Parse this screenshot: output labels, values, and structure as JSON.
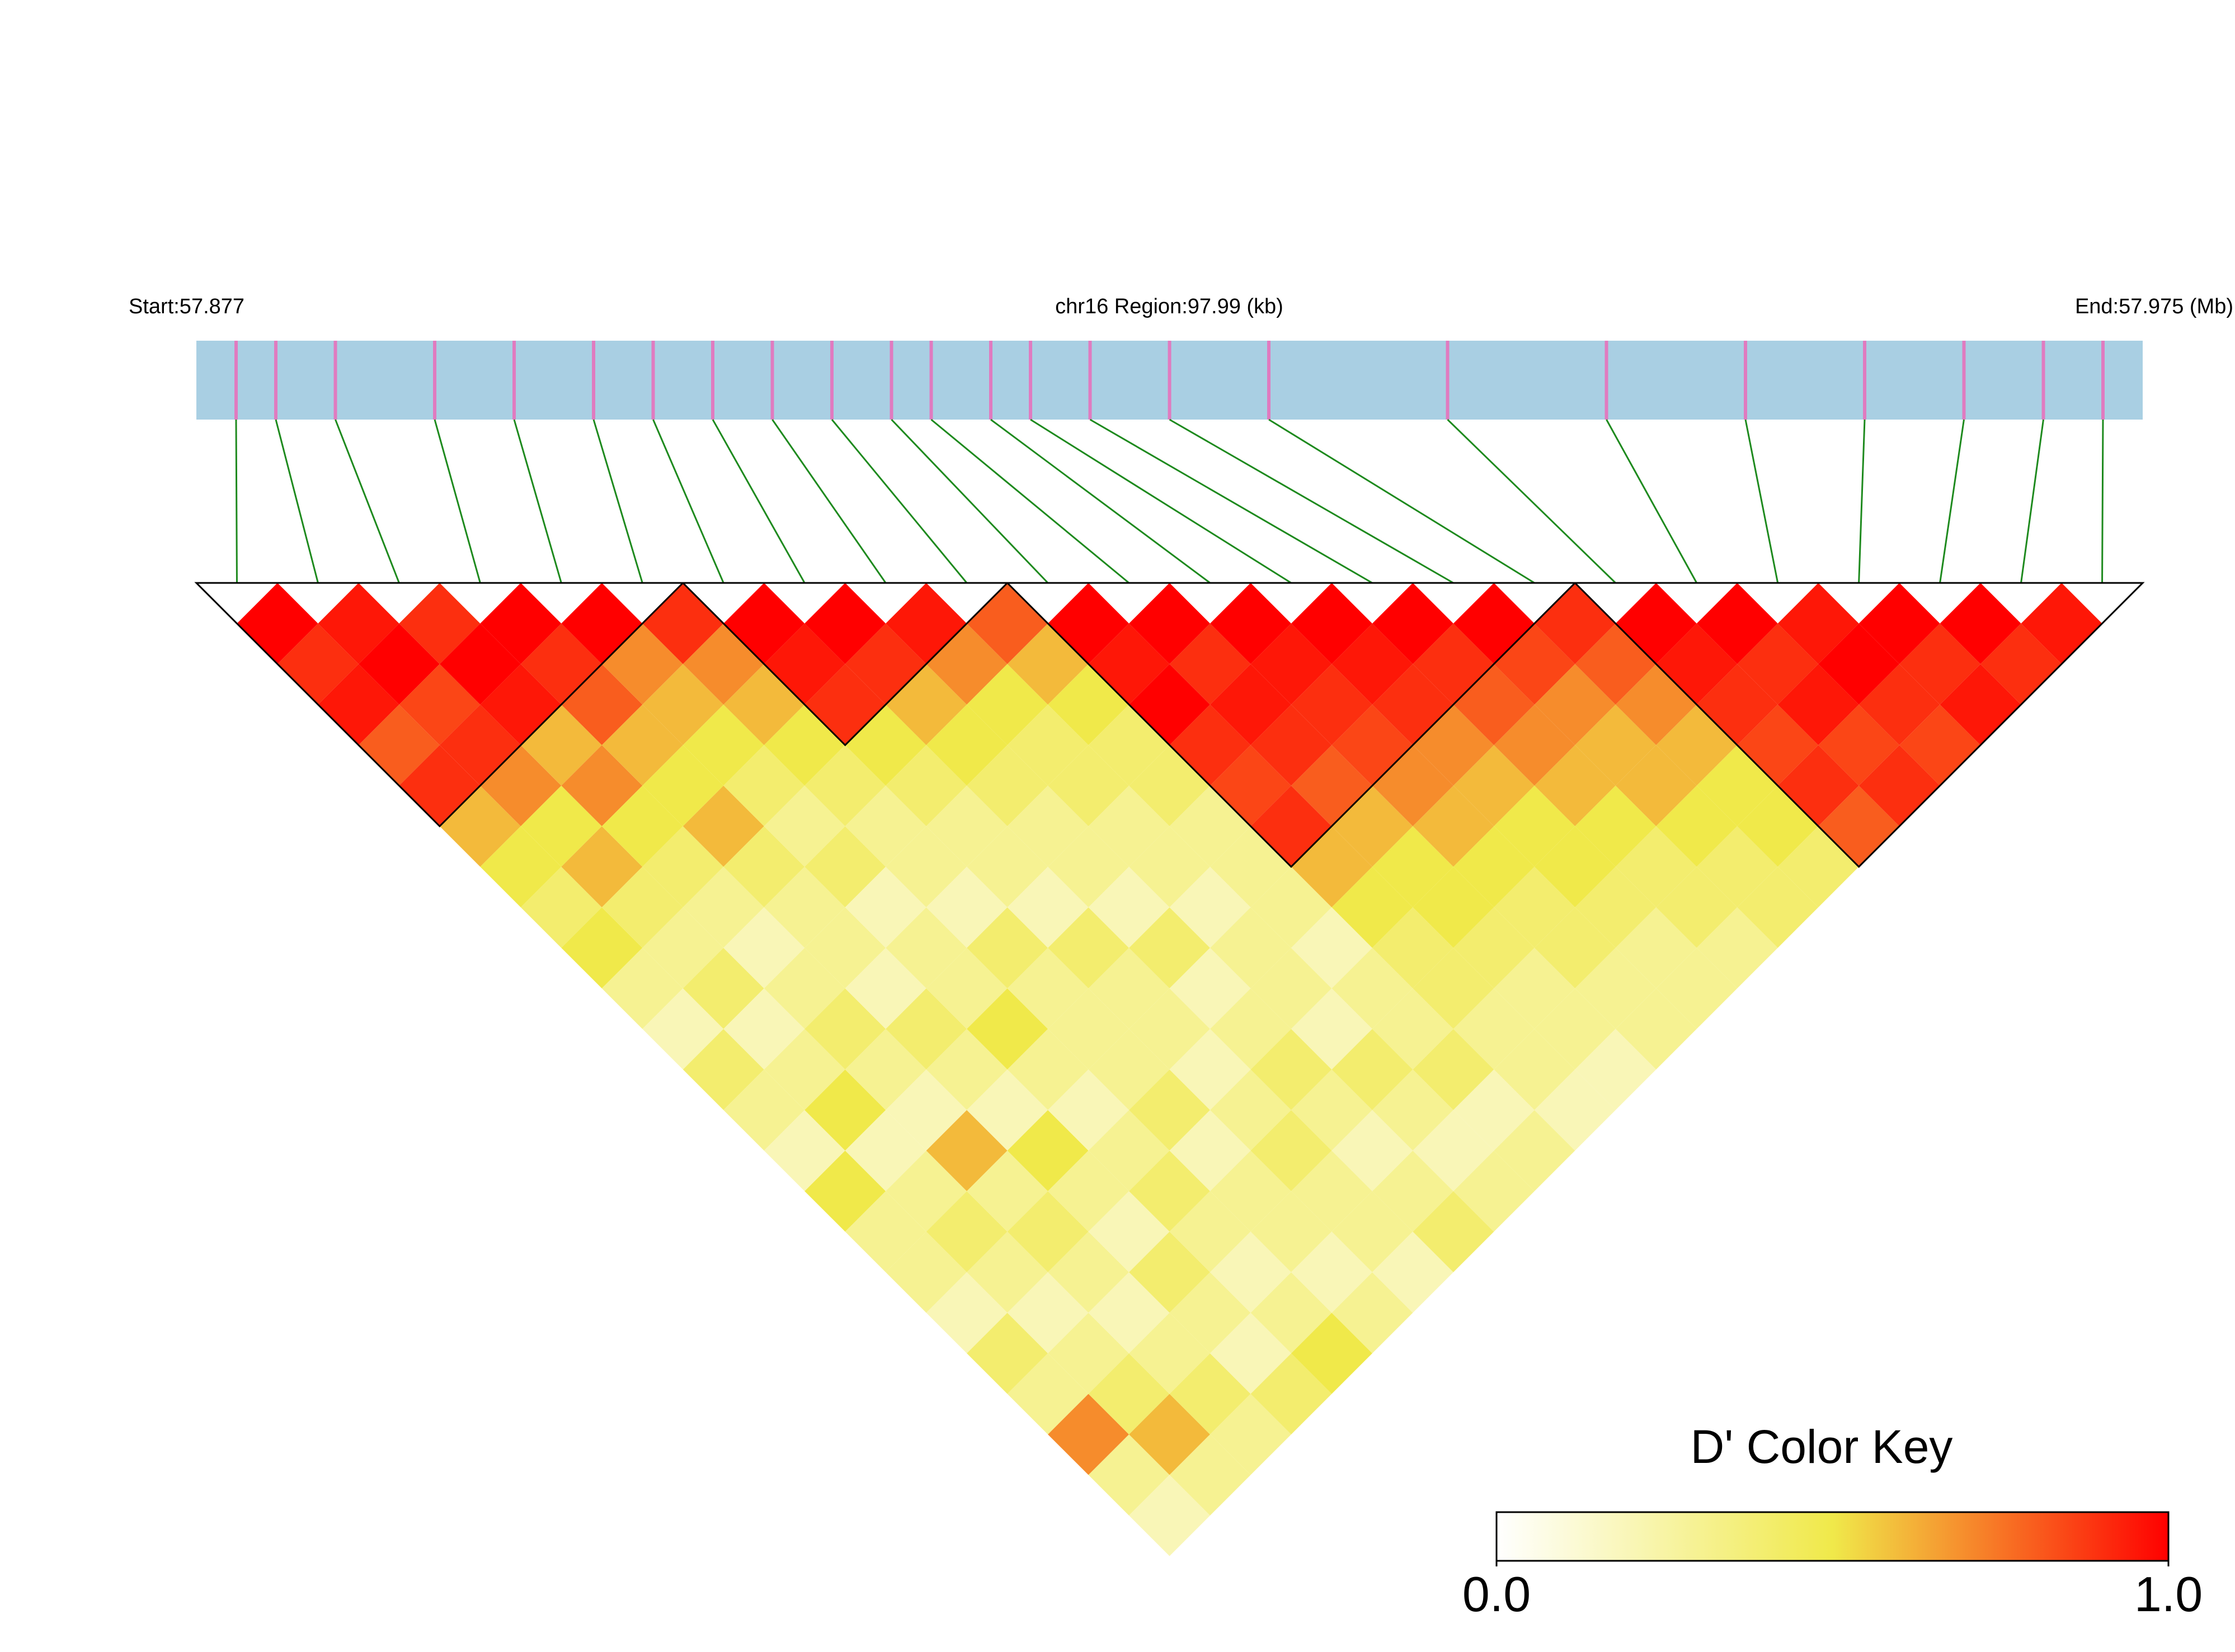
{
  "chart_data": {
    "type": "ld-heatmap",
    "start_label": "Start:57.877",
    "region_label": "chr16 Region:97.99 (kb)",
    "end_label": "End:57.975 (Mb)",
    "legend_title": "D' Color Key",
    "xlim": [
      57.877,
      57.975
    ],
    "x": [
      57.879,
      57.881,
      57.884,
      57.889,
      57.893,
      57.897,
      57.9,
      57.903,
      57.906,
      57.909,
      57.912,
      57.914,
      57.917,
      57.919,
      57.922,
      57.926,
      57.931,
      57.94,
      57.948,
      57.955,
      57.961,
      57.966,
      57.97,
      57.973
    ],
    "values": [
      [
        1,
        0.9,
        0.95,
        0.8,
        0.9,
        0.6,
        0.5,
        0.4,
        0.5,
        0.3,
        0.2,
        0.4,
        0.3,
        0.2,
        0.5,
        0.3,
        0.3,
        0.2,
        0.4,
        0.3,
        0.7,
        0.3,
        0.2
      ],
      [
        0.95,
        1,
        0.85,
        0.9,
        0.7,
        0.5,
        0.6,
        0.4,
        0.3,
        0.4,
        0.2,
        0.3,
        0.5,
        0.2,
        0.3,
        0.4,
        0.3,
        0.2,
        0.3,
        0.4,
        0.6,
        0.3
      ],
      [
        0.9,
        1,
        0.95,
        0.6,
        0.7,
        0.5,
        0.4,
        0.3,
        0.2,
        0.3,
        0.4,
        0.3,
        0.2,
        0.6,
        0.3,
        0.4,
        0.3,
        0.2,
        0.3,
        0.4,
        0.3
      ],
      [
        1,
        0.9,
        0.8,
        0.6,
        0.5,
        0.6,
        0.4,
        0.3,
        0.3,
        0.2,
        0.4,
        0.3,
        0.2,
        0.5,
        0.3,
        0.2,
        0.4,
        0.3,
        0.2,
        0.4
      ],
      [
        1,
        0.7,
        0.6,
        0.5,
        0.4,
        0.3,
        0.4,
        0.2,
        0.3,
        0.3,
        0.5,
        0.3,
        0.2,
        0.3,
        0.4,
        0.3,
        0.2,
        0.3,
        0.5
      ],
      [
        0.9,
        0.7,
        0.6,
        0.5,
        0.4,
        0.3,
        0.3,
        0.2,
        0.4,
        0.3,
        0.3,
        0.3,
        0.4,
        0.2,
        0.3,
        0.3,
        0.2,
        0.3
      ],
      [
        1,
        0.95,
        0.9,
        0.5,
        0.4,
        0.3,
        0.3,
        0.2,
        0.4,
        0.3,
        0.3,
        0.2,
        0.3,
        0.4,
        0.3,
        0.3,
        0.2
      ],
      [
        1,
        0.9,
        0.6,
        0.5,
        0.4,
        0.3,
        0.3,
        0.2,
        0.4,
        0.2,
        0.3,
        0.4,
        0.3,
        0.2,
        0.3,
        0.4
      ],
      [
        0.95,
        0.7,
        0.5,
        0.4,
        0.4,
        0.3,
        0.3,
        0.2,
        0.3,
        0.3,
        0.2,
        0.4,
        0.3,
        0.2,
        0.3
      ],
      [
        0.8,
        0.6,
        0.5,
        0.4,
        0.4,
        0.3,
        0.3,
        0.3,
        0.2,
        0.3,
        0.3,
        0.4,
        0.2,
        0.3
      ],
      [
        1,
        0.95,
        1,
        0.9,
        0.85,
        0.9,
        0.6,
        0.5,
        0.4,
        0.4,
        0.3,
        0.3,
        0.2
      ],
      [
        1,
        0.9,
        0.95,
        0.9,
        0.8,
        0.6,
        0.5,
        0.5,
        0.4,
        0.3,
        0.3,
        0.2
      ],
      [
        1,
        0.95,
        0.9,
        0.85,
        0.7,
        0.6,
        0.5,
        0.4,
        0.4,
        0.3,
        0.3
      ],
      [
        1,
        0.95,
        0.9,
        0.7,
        0.6,
        0.5,
        0.5,
        0.4,
        0.3,
        0.3
      ],
      [
        1,
        0.9,
        0.8,
        0.7,
        0.6,
        0.5,
        0.4,
        0.4,
        0.3
      ],
      [
        1,
        0.85,
        0.7,
        0.6,
        0.6,
        0.5,
        0.4,
        0.4
      ],
      [
        0.9,
        0.8,
        0.7,
        0.6,
        0.5,
        0.5,
        0.4
      ],
      [
        1,
        0.95,
        0.9,
        0.85,
        0.9,
        0.8
      ],
      [
        1,
        0.9,
        0.95,
        0.85,
        0.9
      ],
      [
        0.95,
        1,
        0.9,
        0.85
      ],
      [
        1,
        0.9,
        0.95
      ],
      [
        1,
        0.9
      ],
      [
        0.95
      ]
    ],
    "blocks": [
      [
        0,
        5
      ],
      [
        6,
        9
      ],
      [
        10,
        16
      ],
      [
        17,
        23
      ]
    ],
    "colors": [
      "#ffffff",
      "#f0e94a",
      "#ff0000"
    ],
    "zlim": [
      0,
      1
    ],
    "zticks": [
      {
        "value": 0,
        "label": "0.0"
      },
      {
        "value": 1,
        "label": "1.0"
      }
    ],
    "track_color": "#a9cfe3",
    "snp_color": "#e07bc0",
    "link_color": "#1e8a1e"
  }
}
